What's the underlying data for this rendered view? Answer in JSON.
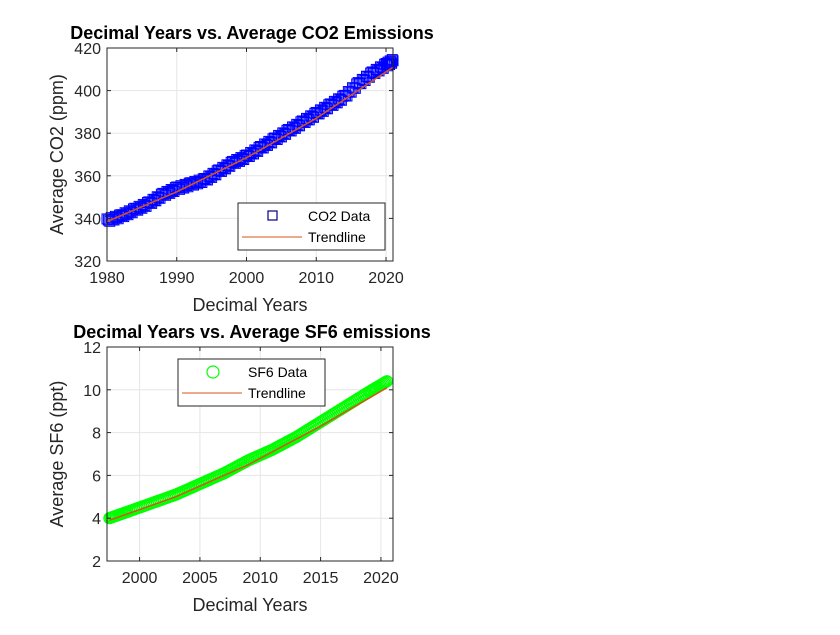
{
  "chart_data": [
    {
      "type": "scatter",
      "title": "Decimal Years vs. Average CO2 Emissions",
      "xlabel": "Decimal Years",
      "ylabel": "Average CO2 (ppm)",
      "xlim": [
        1980,
        2021
      ],
      "ylim": [
        320,
        420
      ],
      "xticks": [
        1980,
        1990,
        2000,
        2010,
        2020
      ],
      "yticks": [
        320,
        340,
        360,
        380,
        400,
        420
      ],
      "grid": true,
      "legend_position": "bottom-right",
      "marker": "square",
      "series": [
        {
          "name": "CO2 Data",
          "color": "#0000ff",
          "legend_color": "#000080",
          "x": [
            1980,
            1982,
            1984,
            1986,
            1988,
            1990,
            1992,
            1994,
            1996,
            1998,
            2000,
            2002,
            2004,
            2006,
            2008,
            2010,
            2012,
            2014,
            2016,
            2018,
            2020,
            2021
          ],
          "y": [
            339,
            341,
            344,
            347,
            351,
            354,
            356,
            358,
            362,
            366,
            369,
            373,
            377,
            381,
            385,
            389,
            393,
            397,
            403,
            408,
            412,
            414
          ]
        },
        {
          "name": "Trendline",
          "color": "#d95319",
          "x": [
            1980,
            1990,
            2000,
            2010,
            2021
          ],
          "y": [
            338.5,
            352.5,
            368.5,
            387,
            411
          ]
        }
      ]
    },
    {
      "type": "scatter",
      "title": "Decimal Years vs. Average SF6 emissions",
      "xlabel": "Decimal Years",
      "ylabel": "Average SF6 (ppt)",
      "xlim": [
        1997.3,
        2021
      ],
      "ylim": [
        2,
        12
      ],
      "xticks": [
        2000,
        2005,
        2010,
        2015,
        2020
      ],
      "yticks": [
        2,
        4,
        6,
        8,
        10,
        12
      ],
      "grid": true,
      "legend_position": "top",
      "marker": "circle",
      "series": [
        {
          "name": "SF6 Data",
          "color": "#00ff00",
          "x": [
            1997.5,
            1999,
            2001,
            2003,
            2005,
            2007,
            2009,
            2011,
            2013,
            2015,
            2017,
            2019,
            2020.5
          ],
          "y": [
            4.0,
            4.3,
            4.7,
            5.1,
            5.6,
            6.1,
            6.7,
            7.2,
            7.8,
            8.5,
            9.2,
            9.9,
            10.4
          ]
        },
        {
          "name": "Trendline",
          "color": "#d95319",
          "x": [
            1997.5,
            2003,
            2009,
            2015,
            2020.5
          ],
          "y": [
            3.9,
            5.0,
            6.5,
            8.3,
            10.1
          ]
        }
      ]
    }
  ]
}
